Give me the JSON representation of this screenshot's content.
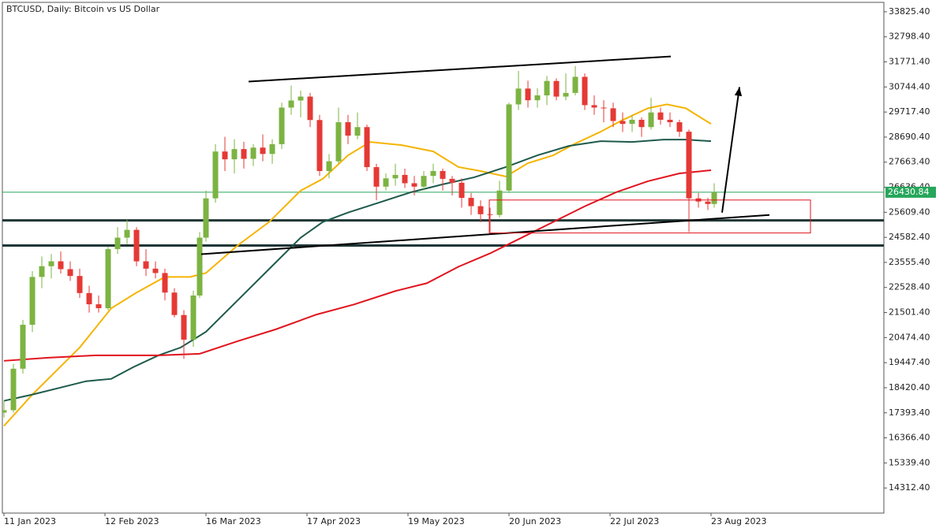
{
  "chart_data": {
    "type": "candlestick",
    "title": "BTCUSD, Daily:  Bitcoin vs US Dollar",
    "xlim": [
      -0.5,
      278.75
    ],
    "xticks": [
      {
        "value": 0,
        "label": "11 Jan 2023"
      },
      {
        "value": 32,
        "label": "12 Feb 2023"
      },
      {
        "value": 64,
        "label": "16 Mar 2023"
      },
      {
        "value": 96,
        "label": "17 Apr 2023"
      },
      {
        "value": 128,
        "label": "19 May 2023"
      },
      {
        "value": 160,
        "label": "20 Jun 2023"
      },
      {
        "value": 192,
        "label": "22 Jul 2023"
      },
      {
        "value": 224,
        "label": "23 Aug 2023"
      }
    ],
    "ylim": [
      13284,
      34211
    ],
    "yticks": [
      {
        "value": 33825.4,
        "label": "33825.40"
      },
      {
        "value": 32798.4,
        "label": "32798.40"
      },
      {
        "value": 31771.4,
        "label": "31771.40"
      },
      {
        "value": 30744.4,
        "label": "30744.40"
      },
      {
        "value": 29717.4,
        "label": "29717.40"
      },
      {
        "value": 28690.4,
        "label": "28690.40"
      },
      {
        "value": 27663.4,
        "label": "27663.40"
      },
      {
        "value": 26636.4,
        "label": "26636.40"
      },
      {
        "value": 25609.4,
        "label": "25609.40"
      },
      {
        "value": 24582.4,
        "label": "24582.40"
      },
      {
        "value": 23555.4,
        "label": "23555.40"
      },
      {
        "value": 22528.4,
        "label": "22528.40"
      },
      {
        "value": 21501.4,
        "label": "21501.40"
      },
      {
        "value": 20474.4,
        "label": "20474.40"
      },
      {
        "value": 19447.4,
        "label": "19447.40"
      },
      {
        "value": 18420.4,
        "label": "18420.40"
      },
      {
        "value": 17393.4,
        "label": "17393.40"
      },
      {
        "value": 16366.4,
        "label": "16366.40"
      },
      {
        "value": 15339.4,
        "label": "15339.40"
      },
      {
        "value": 14312.4,
        "label": "14312.40"
      }
    ],
    "up_color": "#7cb342",
    "down_color": "#e53935",
    "x": [
      0,
      3,
      6,
      9,
      12,
      15,
      18,
      21,
      24,
      27,
      30,
      33,
      36,
      39,
      42,
      45,
      48,
      51,
      54,
      57,
      60,
      62,
      64,
      67,
      70,
      73,
      76,
      79,
      82,
      85,
      88,
      91,
      94,
      97,
      100,
      103,
      106,
      109,
      112,
      115,
      118,
      121,
      124,
      127,
      130,
      133,
      136,
      139,
      142,
      145,
      148,
      151,
      154,
      157,
      160,
      163,
      166,
      169,
      172,
      175,
      178,
      181,
      184,
      187,
      190,
      193,
      196,
      199,
      202,
      205,
      208,
      211,
      214,
      217,
      220,
      223,
      225
    ],
    "open": [
      17400,
      17500,
      19200,
      21000,
      22960,
      23400,
      23600,
      23280,
      23000,
      22300,
      21840,
      21680,
      24100,
      24570,
      24890,
      23600,
      23300,
      23120,
      22320,
      21400,
      20390,
      22200,
      24570,
      26180,
      28100,
      27780,
      28200,
      27800,
      28260,
      28000,
      28400,
      29900,
      30190,
      30350,
      29390,
      27300,
      27700,
      29300,
      28750,
      29100,
      27460,
      26660,
      27000,
      27140,
      26800,
      26660,
      27100,
      27300,
      26980,
      26820,
      26200,
      25860,
      25530,
      25500,
      26500,
      30030,
      30680,
      30200,
      30400,
      30990,
      30350,
      30500,
      31160,
      30000,
      29900,
      29870,
      29350,
      29230,
      29400,
      29100,
      29700,
      29400,
      29300,
      28910,
      26180,
      26050,
      25950
    ],
    "high": [
      17900,
      19400,
      21200,
      23200,
      23800,
      23900,
      24000,
      23600,
      23300,
      22600,
      22200,
      24200,
      25000,
      25300,
      25000,
      24100,
      23600,
      23300,
      22500,
      21600,
      22400,
      24800,
      26500,
      28400,
      28700,
      28600,
      28500,
      28400,
      28800,
      28600,
      30100,
      30800,
      30600,
      30500,
      29600,
      28000,
      29900,
      29600,
      29700,
      29200,
      27600,
      27200,
      27600,
      27400,
      27100,
      27300,
      27600,
      27400,
      27100,
      27000,
      26400,
      26100,
      25800,
      26900,
      30100,
      31400,
      31000,
      30700,
      31200,
      31100,
      31300,
      31600,
      31300,
      30400,
      30200,
      30100,
      29700,
      29600,
      29500,
      30300,
      29900,
      29700,
      29400,
      29000,
      26400,
      26200,
      26800
    ],
    "low": [
      17200,
      17400,
      19000,
      20700,
      22500,
      22900,
      23100,
      22800,
      22100,
      21500,
      21500,
      21600,
      23900,
      24300,
      23400,
      23000,
      22900,
      22000,
      21300,
      19600,
      20100,
      22100,
      24400,
      26000,
      27300,
      27200,
      27400,
      27500,
      27700,
      27600,
      28200,
      29600,
      29500,
      29100,
      27100,
      27000,
      27600,
      28400,
      28600,
      27300,
      26100,
      26500,
      26700,
      26600,
      26300,
      26500,
      26800,
      26500,
      26300,
      25800,
      25500,
      25200,
      24800,
      25400,
      26400,
      29800,
      29900,
      29900,
      30000,
      30200,
      30200,
      30400,
      29800,
      29600,
      29300,
      29100,
      28900,
      28900,
      28700,
      29000,
      29200,
      29100,
      28700,
      24800,
      25800,
      25700,
      25800
    ],
    "close": [
      17500,
      19200,
      21000,
      22960,
      23400,
      23600,
      23280,
      23000,
      22300,
      21840,
      21680,
      24100,
      24570,
      24890,
      23600,
      23300,
      23120,
      22320,
      21400,
      20390,
      22200,
      24570,
      26180,
      28100,
      27780,
      28200,
      27800,
      28260,
      28000,
      28400,
      29900,
      30190,
      30350,
      29390,
      27300,
      27700,
      29300,
      28750,
      29100,
      27460,
      26660,
      27000,
      27140,
      26800,
      26660,
      27100,
      27300,
      26980,
      26820,
      26200,
      25860,
      25530,
      25500,
      26500,
      30030,
      30680,
      30200,
      30400,
      30990,
      30350,
      30500,
      31160,
      30000,
      29900,
      29870,
      29350,
      29230,
      29400,
      29100,
      29700,
      29400,
      29300,
      28910,
      26180,
      26050,
      25950,
      26431
    ],
    "lines": [
      {
        "color": "#f5b400",
        "x": [
          0,
          9,
          24,
          34,
          42,
          51,
          59,
          64,
          74,
          84,
          94,
          101,
          109,
          116,
          126,
          136,
          144,
          151,
          159,
          166,
          174,
          181,
          189,
          196,
          204,
          210,
          216,
          224
        ],
        "values": [
          16855,
          18141,
          20069,
          21676,
          22319,
          22962,
          22962,
          23123,
          24248,
          25212,
          26497,
          26979,
          27944,
          28490,
          28362,
          28104,
          27462,
          27301,
          27076,
          27622,
          27944,
          28426,
          28908,
          29390,
          29872,
          30033,
          29872,
          29229
        ]
      },
      {
        "color": "#1e5a4c",
        "x": [
          0,
          9,
          19,
          26,
          34,
          41,
          49,
          56,
          64,
          74,
          84,
          94,
          101,
          109,
          119,
          129,
          139,
          149,
          159,
          169,
          179,
          189,
          199,
          209,
          216,
          224
        ],
        "values": [
          17884,
          18141,
          18462,
          18687,
          18784,
          19266,
          19748,
          20069,
          20712,
          21998,
          23283,
          24569,
          25212,
          25597,
          26015,
          26433,
          26755,
          27044,
          27462,
          27944,
          28329,
          28522,
          28490,
          28586,
          28586,
          28522
        ]
      },
      {
        "color": "#e0141e",
        "x": [
          0,
          14,
          29,
          49,
          62,
          74,
          86,
          99,
          111,
          124,
          134,
          144,
          154,
          164,
          174,
          184,
          194,
          204,
          214,
          224
        ],
        "values": [
          19523,
          19652,
          19748,
          19748,
          19812,
          20327,
          20809,
          21419,
          21837,
          22383,
          22705,
          23380,
          23926,
          24569,
          25212,
          25855,
          26433,
          26883,
          27204,
          27333
        ]
      }
    ],
    "last_price": 26430.84,
    "last_price_color": "#26a65b",
    "hlines": [
      25276,
      24248
    ],
    "hline_color": "#1f3535",
    "trendlines": [
      {
        "x": [
          77.5,
          211.25
        ],
        "values": [
          30965,
          31993
        ]
      },
      {
        "x": [
          62.5,
          242.5
        ],
        "values": [
          23894,
          25501
        ]
      }
    ],
    "trendline_color": "#000000",
    "box": {
      "x": [
        153.75,
        255.5
      ],
      "values": [
        26112,
        24762
      ],
      "color": "#e0141e"
    },
    "arrow": {
      "x": [
        227.5,
        233
      ],
      "values": [
        25597,
        30740
      ],
      "color": "#000000"
    }
  }
}
